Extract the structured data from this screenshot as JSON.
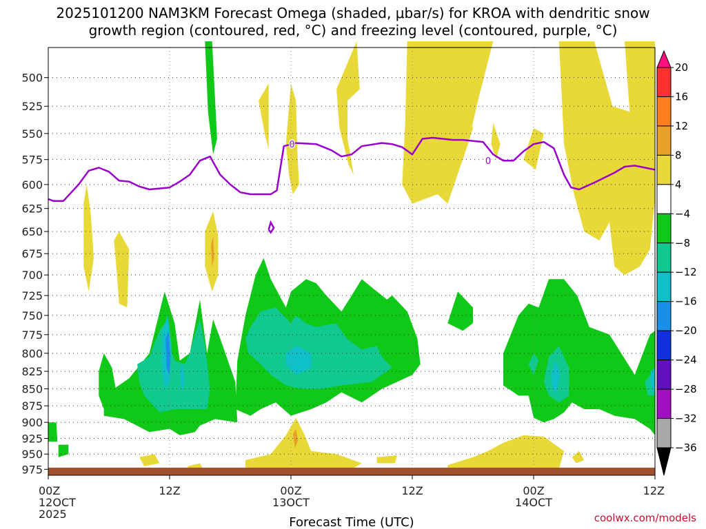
{
  "chart_data": {
    "type": "heatmap",
    "title": "2025101200 NAM3KM Forecast Omega (shaded, μbar/s) for KROA with dendritic snow",
    "title_line2": "growth region (contoured, red, °C) and freezing level (contoured, purple, °C)",
    "xlabel": "Forecast Time (UTC)",
    "ylabel": "",
    "credit": "coolwx.com/models",
    "x_ticks": [
      {
        "hour": 0,
        "label": "00Z",
        "label2": "12OCT",
        "label3": "2025"
      },
      {
        "hour": 12,
        "label": "12Z",
        "label2": "",
        "label3": ""
      },
      {
        "hour": 24,
        "label": "00Z",
        "label2": "13OCT",
        "label3": ""
      },
      {
        "hour": 36,
        "label": "12Z",
        "label2": "",
        "label3": ""
      },
      {
        "hour": 48,
        "label": "00Z",
        "label2": "14OCT",
        "label3": ""
      },
      {
        "hour": 60,
        "label": "12Z",
        "label2": "",
        "label3": ""
      }
    ],
    "xlim_hours": [
      0,
      60
    ],
    "y_levels": [
      500,
      525,
      550,
      575,
      600,
      625,
      650,
      675,
      700,
      725,
      750,
      775,
      800,
      825,
      850,
      875,
      900,
      925,
      950,
      975
    ],
    "ylim": [
      475,
      985
    ],
    "y_scale": "log-pressure",
    "grid": "dotted",
    "colorbar": {
      "labels": [
        "20",
        "16",
        "12",
        "8",
        "4",
        "−4",
        "−8",
        "−12",
        "−16",
        "−20",
        "−24",
        "−28",
        "−32",
        "−36"
      ],
      "colors": [
        "#ff1080",
        "#ff3030",
        "#ff7f1f",
        "#e8a028",
        "#e8d838",
        "#ffffff",
        "#10c818",
        "#10c890",
        "#10c0c8",
        "#1890e8",
        "#1030e0",
        "#6010c0",
        "#a010c0",
        "#a8a8a8",
        "#000000"
      ]
    },
    "contour_labels": [
      "0",
      "0"
    ],
    "freezing_level": {
      "color": "#9900cc",
      "points": [
        [
          0,
          615
        ],
        [
          0.5,
          617
        ],
        [
          1.5,
          617
        ],
        [
          3,
          600
        ],
        [
          4,
          586
        ],
        [
          5,
          583
        ],
        [
          6,
          587
        ],
        [
          7,
          596
        ],
        [
          8,
          597
        ],
        [
          9,
          602
        ],
        [
          10,
          605
        ],
        [
          11,
          604
        ],
        [
          12,
          603
        ],
        [
          13,
          597
        ],
        [
          14,
          590
        ],
        [
          15,
          576
        ],
        [
          16,
          572
        ],
        [
          17,
          590
        ],
        [
          18,
          600
        ],
        [
          19,
          608
        ],
        [
          20,
          610
        ],
        [
          21,
          610
        ],
        [
          22,
          610
        ],
        [
          22.6,
          606
        ],
        [
          23.3,
          562
        ],
        [
          24.5,
          559
        ],
        [
          26.5,
          560
        ],
        [
          28,
          566
        ],
        [
          29,
          572
        ],
        [
          30,
          570
        ],
        [
          31,
          562
        ],
        [
          33,
          559
        ],
        [
          34,
          560
        ],
        [
          35,
          563
        ],
        [
          36,
          570
        ],
        [
          37,
          555
        ],
        [
          38,
          554
        ],
        [
          40,
          556
        ],
        [
          41,
          556
        ],
        [
          42,
          557
        ],
        [
          43,
          558
        ],
        [
          44,
          570
        ],
        [
          45,
          576
        ],
        [
          46,
          576
        ],
        [
          47,
          567
        ],
        [
          48,
          560
        ],
        [
          49,
          558
        ],
        [
          50,
          564
        ],
        [
          51,
          590
        ],
        [
          51.7,
          603
        ],
        [
          52.5,
          605
        ],
        [
          54,
          598
        ],
        [
          56,
          588
        ],
        [
          57,
          582
        ],
        [
          58,
          581
        ],
        [
          59,
          583
        ],
        [
          60,
          585
        ]
      ]
    },
    "freezing_level_island": [
      [
        21.8,
        648
      ],
      [
        22,
        640
      ],
      [
        22.3,
        646
      ],
      [
        22,
        651
      ],
      [
        21.8,
        648
      ]
    ],
    "ground": {
      "color": "#a0522d",
      "top_level": 970
    }
  }
}
